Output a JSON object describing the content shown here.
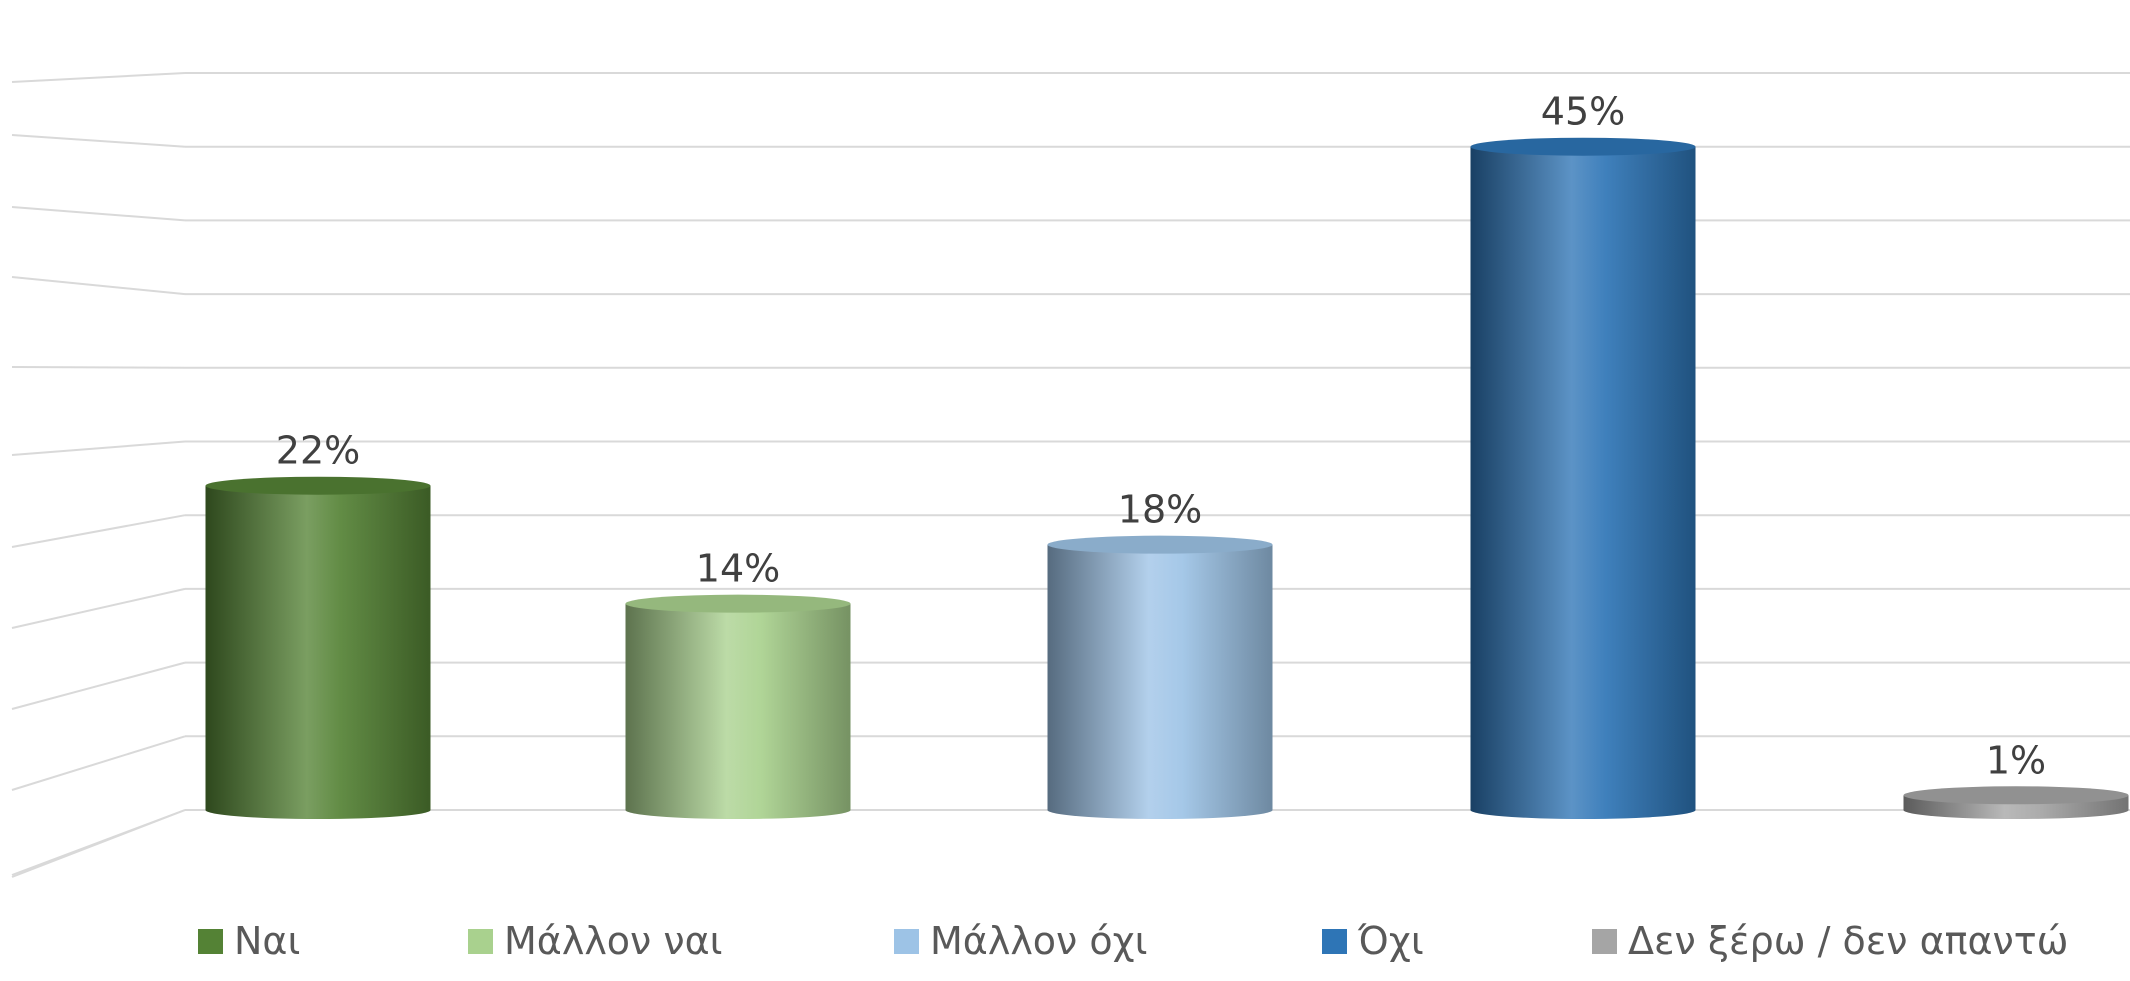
{
  "chart_data": {
    "type": "bar",
    "style": "3d-cylinder",
    "categories": [
      "Ναι",
      "Μάλλον ναι",
      "Μάλλον όχι",
      "Όχι",
      "Δεν ξέρω / δεν απαντώ"
    ],
    "values": [
      22,
      14,
      18,
      45,
      1
    ],
    "data_labels": [
      "22%",
      "14%",
      "18%",
      "45%",
      "1%"
    ],
    "ylim": [
      0,
      50
    ],
    "grid": true,
    "legend_position": "bottom",
    "colors": [
      "#548235",
      "#A9D18E",
      "#9DC3E6",
      "#2E75B6",
      "#A5A5A5"
    ]
  }
}
